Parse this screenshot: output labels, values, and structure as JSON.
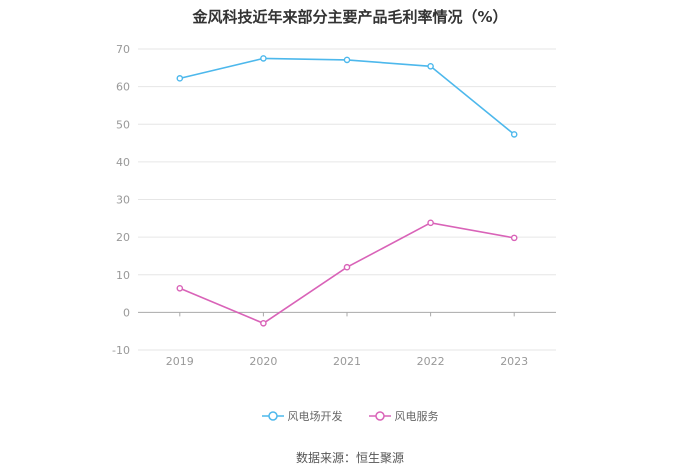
{
  "title": "金风科技近年来部分主要产品毛利率情况（%）",
  "source": "数据来源：恒生聚源",
  "colors": {
    "series1": "#4db8ec",
    "series2": "#d963b8",
    "grid": "#e6e6e6",
    "axis": "#999999"
  },
  "chart_data": {
    "type": "line",
    "categories": [
      "2019",
      "2020",
      "2021",
      "2022",
      "2023"
    ],
    "ylim": [
      -10,
      70
    ],
    "yticks": [
      -10,
      0,
      10,
      20,
      30,
      40,
      50,
      60,
      70
    ],
    "grid": true,
    "legend_position": "bottom",
    "series": [
      {
        "name": "风电场开发",
        "values": [
          62.2,
          67.5,
          67.1,
          65.4,
          47.3
        ]
      },
      {
        "name": "风电服务",
        "values": [
          6.4,
          -2.9,
          12.0,
          23.8,
          19.8
        ]
      }
    ]
  }
}
